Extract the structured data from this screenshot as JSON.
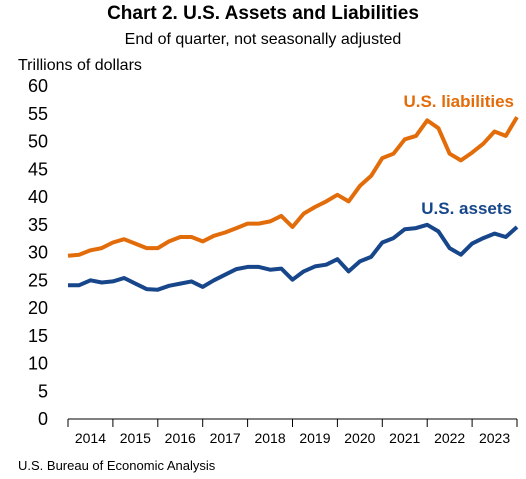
{
  "chart_data": {
    "type": "line",
    "title": "Chart 2. U.S. Assets and Liabilities",
    "subtitle": "End of quarter, not seasonally adjusted",
    "ylabel": "Trillions of dollars",
    "xlabel": "",
    "source": "U.S. Bureau of Economic Analysis",
    "ylim": [
      0,
      60
    ],
    "yticks": [
      0,
      5,
      10,
      15,
      20,
      25,
      30,
      35,
      40,
      45,
      50,
      55,
      60
    ],
    "x_tick_labels": [
      "2014",
      "2015",
      "2016",
      "2017",
      "2018",
      "2019",
      "2020",
      "2021",
      "2022",
      "2023"
    ],
    "x_range": [
      2013.75,
      2023.75
    ],
    "grid": false,
    "legend": "inline",
    "x": [
      2013.75,
      2014.0,
      2014.25,
      2014.5,
      2014.75,
      2015.0,
      2015.25,
      2015.5,
      2015.75,
      2016.0,
      2016.25,
      2016.5,
      2016.75,
      2017.0,
      2017.25,
      2017.5,
      2017.75,
      2018.0,
      2018.25,
      2018.5,
      2018.75,
      2019.0,
      2019.25,
      2019.5,
      2019.75,
      2020.0,
      2020.25,
      2020.5,
      2020.75,
      2021.0,
      2021.25,
      2021.5,
      2021.75,
      2022.0,
      2022.25,
      2022.5,
      2022.75,
      2023.0,
      2023.25,
      2023.5,
      2023.75
    ],
    "series": [
      {
        "name": "U.S. liabilities",
        "color": "#E36C0A",
        "values": [
          29.4,
          29.6,
          30.4,
          30.8,
          31.8,
          32.4,
          31.6,
          30.8,
          30.8,
          32.0,
          32.8,
          32.8,
          32.0,
          33.0,
          33.6,
          34.4,
          35.2,
          35.2,
          35.6,
          36.6,
          34.6,
          37.0,
          38.2,
          39.2,
          40.4,
          39.2,
          42.0,
          43.8,
          47.0,
          47.8,
          50.4,
          51.0,
          53.8,
          52.4,
          47.8,
          46.6,
          48.0,
          49.6,
          51.8,
          51.0,
          54.4
        ]
      },
      {
        "name": "U.S. assets",
        "color": "#17468A",
        "values": [
          24.1,
          24.1,
          25.0,
          24.6,
          24.8,
          25.4,
          24.4,
          23.4,
          23.3,
          24.0,
          24.4,
          24.8,
          23.8,
          25.0,
          26.0,
          27.0,
          27.4,
          27.4,
          26.9,
          27.1,
          25.1,
          26.6,
          27.5,
          27.8,
          28.8,
          26.6,
          28.4,
          29.2,
          31.8,
          32.6,
          34.2,
          34.4,
          35.0,
          33.8,
          30.8,
          29.6,
          31.6,
          32.6,
          33.4,
          32.8,
          34.6
        ]
      }
    ]
  }
}
